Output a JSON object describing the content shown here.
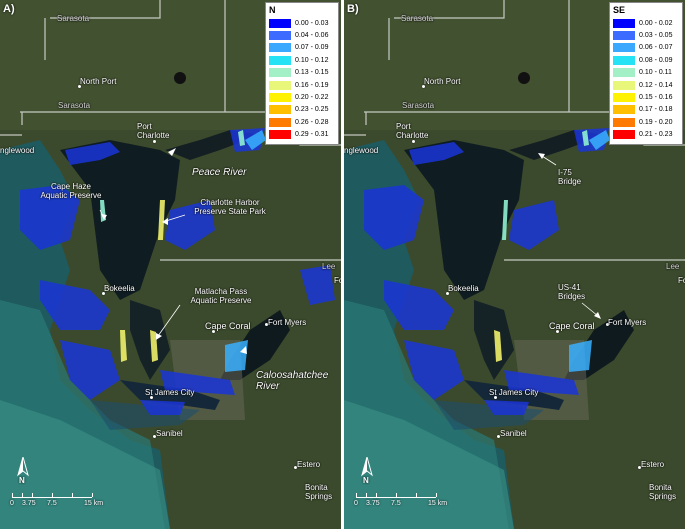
{
  "panels": [
    {
      "id": "A",
      "letter": "A)",
      "legend": {
        "title": "N",
        "classes": [
          {
            "label": "0.00 - 0.03",
            "color": "#0000ff"
          },
          {
            "label": "0.04 - 0.06",
            "color": "#3c6cff"
          },
          {
            "label": "0.07 - 0.09",
            "color": "#3aa8ff"
          },
          {
            "label": "0.10 - 0.12",
            "color": "#25e3f5"
          },
          {
            "label": "0.13 - 0.15",
            "color": "#a3f0c6"
          },
          {
            "label": "0.16 - 0.19",
            "color": "#e8f67a"
          },
          {
            "label": "0.20 - 0.22",
            "color": "#fff200"
          },
          {
            "label": "0.23 - 0.25",
            "color": "#ffbe00"
          },
          {
            "label": "0.26 - 0.28",
            "color": "#ff7a00"
          },
          {
            "label": "0.29 - 0.31",
            "color": "#ff0000"
          }
        ]
      },
      "places": {
        "sarasota_top": "Sarasota",
        "north_port": "North Port",
        "sarasota_mid": "Sarasota",
        "port_charlotte": "Port Charlotte",
        "englewood": "nglewood",
        "bokeelia": "Bokeelia",
        "cape_coral": "Cape Coral",
        "fort_myers": "Fort Myers",
        "st_james_city": "St James City",
        "sanibel": "Sanibel",
        "estero": "Estero",
        "bonita_springs": "Bonita Springs",
        "lee": "Lee",
        "fort_short": "Fo"
      },
      "features": {
        "peace_river": "Peace River",
        "cape_haze": "Cape Haze Aquatic Preserve",
        "charlotte_harbor": "Charlotte Harbor Preserve State Park",
        "matlacha": "Matlacha Pass Aquatic Preserve",
        "caloosahatchee": "Caloosahatchee River"
      },
      "scale": {
        "ticks": [
          "0",
          "3.75",
          "7.5",
          "15 km"
        ]
      },
      "north_label": "N"
    },
    {
      "id": "B",
      "letter": "B)",
      "legend": {
        "title": "SE",
        "classes": [
          {
            "label": "0.00 - 0.02",
            "color": "#0000ff"
          },
          {
            "label": "0.03 - 0.05",
            "color": "#3c6cff"
          },
          {
            "label": "0.06 - 0.07",
            "color": "#3aa8ff"
          },
          {
            "label": "0.08 - 0.09",
            "color": "#25e3f5"
          },
          {
            "label": "0.10 - 0.11",
            "color": "#a3f0c6"
          },
          {
            "label": "0.12 - 0.14",
            "color": "#e8f67a"
          },
          {
            "label": "0.15 - 0.16",
            "color": "#fff200"
          },
          {
            "label": "0.17 - 0.18",
            "color": "#ffbe00"
          },
          {
            "label": "0.19 - 0.20",
            "color": "#ff7a00"
          },
          {
            "label": "0.21 - 0.23",
            "color": "#ff0000"
          }
        ]
      },
      "places": {
        "sarasota_top": "Sarasota",
        "north_port": "North Port",
        "sarasota_mid": "Sarasota",
        "port_charlotte": "Port Charlotte",
        "englewood": "nglewood",
        "bokeelia": "Bokeelia",
        "cape_coral": "Cape Coral",
        "fort_myers": "Fort Myers",
        "st_james_city": "St James City",
        "sanibel": "Sanibel",
        "estero": "Estero",
        "bonita_springs": "Bonita Springs",
        "lee": "Lee",
        "fort_short": "Fo"
      },
      "features": {
        "i75": "I-75 Bridge",
        "us41": "US-41 Bridges"
      },
      "scale": {
        "ticks": [
          "0",
          "3.75",
          "7.5",
          "15 km"
        ]
      },
      "north_label": "N"
    }
  ]
}
